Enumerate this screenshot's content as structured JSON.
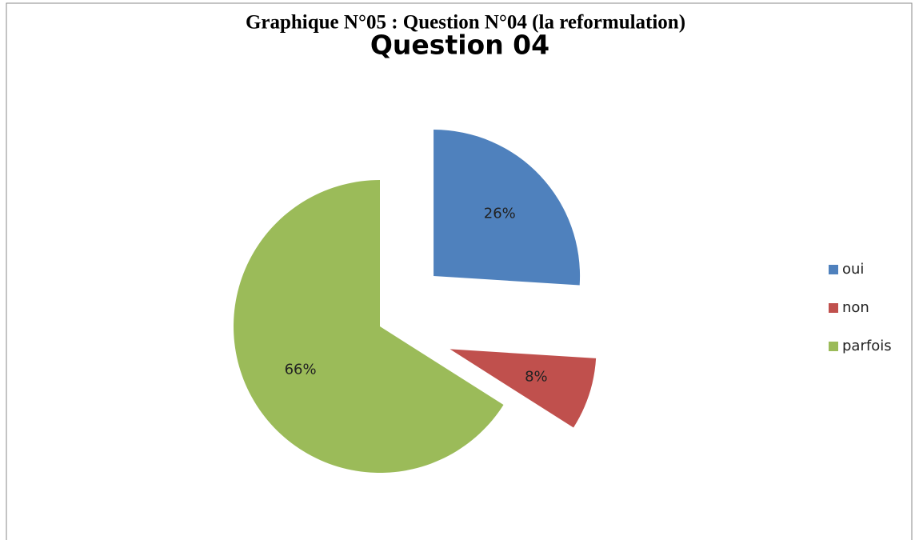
{
  "caption": "Graphique N°05 : Question N°04 (la reformulation)",
  "chart_data": {
    "type": "pie",
    "title": "Question 04",
    "categories": [
      "oui",
      "non",
      "parfois"
    ],
    "values": [
      26,
      8,
      66
    ],
    "value_labels": [
      "26%",
      "8%",
      "66%"
    ],
    "colors": [
      "#4f81bd",
      "#c0504d",
      "#9bbb59"
    ],
    "legend": "right"
  }
}
